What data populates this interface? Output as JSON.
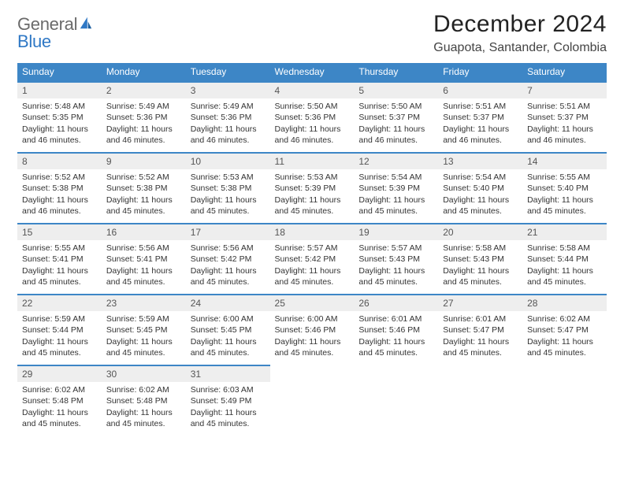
{
  "brand": {
    "text1": "General",
    "text2": "Blue"
  },
  "header": {
    "month_title": "December 2024",
    "location": "Guapota, Santander, Colombia"
  },
  "style": {
    "header_bg": "#3d86c6",
    "header_text": "#ffffff",
    "daynum_bg": "#eeeeee",
    "daynum_border": "#3d86c6",
    "body_text": "#333333",
    "page_bg": "#ffffff",
    "title_fontsize": 30,
    "location_fontsize": 16,
    "weekday_fontsize": 12,
    "cell_fontsize": 10.5
  },
  "calendar": {
    "columns": [
      "Sunday",
      "Monday",
      "Tuesday",
      "Wednesday",
      "Thursday",
      "Friday",
      "Saturday"
    ],
    "weeks": [
      [
        {
          "n": "1",
          "sr": "Sunrise: 5:48 AM",
          "ss": "Sunset: 5:35 PM",
          "d1": "Daylight: 11 hours",
          "d2": "and 46 minutes."
        },
        {
          "n": "2",
          "sr": "Sunrise: 5:49 AM",
          "ss": "Sunset: 5:36 PM",
          "d1": "Daylight: 11 hours",
          "d2": "and 46 minutes."
        },
        {
          "n": "3",
          "sr": "Sunrise: 5:49 AM",
          "ss": "Sunset: 5:36 PM",
          "d1": "Daylight: 11 hours",
          "d2": "and 46 minutes."
        },
        {
          "n": "4",
          "sr": "Sunrise: 5:50 AM",
          "ss": "Sunset: 5:36 PM",
          "d1": "Daylight: 11 hours",
          "d2": "and 46 minutes."
        },
        {
          "n": "5",
          "sr": "Sunrise: 5:50 AM",
          "ss": "Sunset: 5:37 PM",
          "d1": "Daylight: 11 hours",
          "d2": "and 46 minutes."
        },
        {
          "n": "6",
          "sr": "Sunrise: 5:51 AM",
          "ss": "Sunset: 5:37 PM",
          "d1": "Daylight: 11 hours",
          "d2": "and 46 minutes."
        },
        {
          "n": "7",
          "sr": "Sunrise: 5:51 AM",
          "ss": "Sunset: 5:37 PM",
          "d1": "Daylight: 11 hours",
          "d2": "and 46 minutes."
        }
      ],
      [
        {
          "n": "8",
          "sr": "Sunrise: 5:52 AM",
          "ss": "Sunset: 5:38 PM",
          "d1": "Daylight: 11 hours",
          "d2": "and 46 minutes."
        },
        {
          "n": "9",
          "sr": "Sunrise: 5:52 AM",
          "ss": "Sunset: 5:38 PM",
          "d1": "Daylight: 11 hours",
          "d2": "and 45 minutes."
        },
        {
          "n": "10",
          "sr": "Sunrise: 5:53 AM",
          "ss": "Sunset: 5:38 PM",
          "d1": "Daylight: 11 hours",
          "d2": "and 45 minutes."
        },
        {
          "n": "11",
          "sr": "Sunrise: 5:53 AM",
          "ss": "Sunset: 5:39 PM",
          "d1": "Daylight: 11 hours",
          "d2": "and 45 minutes."
        },
        {
          "n": "12",
          "sr": "Sunrise: 5:54 AM",
          "ss": "Sunset: 5:39 PM",
          "d1": "Daylight: 11 hours",
          "d2": "and 45 minutes."
        },
        {
          "n": "13",
          "sr": "Sunrise: 5:54 AM",
          "ss": "Sunset: 5:40 PM",
          "d1": "Daylight: 11 hours",
          "d2": "and 45 minutes."
        },
        {
          "n": "14",
          "sr": "Sunrise: 5:55 AM",
          "ss": "Sunset: 5:40 PM",
          "d1": "Daylight: 11 hours",
          "d2": "and 45 minutes."
        }
      ],
      [
        {
          "n": "15",
          "sr": "Sunrise: 5:55 AM",
          "ss": "Sunset: 5:41 PM",
          "d1": "Daylight: 11 hours",
          "d2": "and 45 minutes."
        },
        {
          "n": "16",
          "sr": "Sunrise: 5:56 AM",
          "ss": "Sunset: 5:41 PM",
          "d1": "Daylight: 11 hours",
          "d2": "and 45 minutes."
        },
        {
          "n": "17",
          "sr": "Sunrise: 5:56 AM",
          "ss": "Sunset: 5:42 PM",
          "d1": "Daylight: 11 hours",
          "d2": "and 45 minutes."
        },
        {
          "n": "18",
          "sr": "Sunrise: 5:57 AM",
          "ss": "Sunset: 5:42 PM",
          "d1": "Daylight: 11 hours",
          "d2": "and 45 minutes."
        },
        {
          "n": "19",
          "sr": "Sunrise: 5:57 AM",
          "ss": "Sunset: 5:43 PM",
          "d1": "Daylight: 11 hours",
          "d2": "and 45 minutes."
        },
        {
          "n": "20",
          "sr": "Sunrise: 5:58 AM",
          "ss": "Sunset: 5:43 PM",
          "d1": "Daylight: 11 hours",
          "d2": "and 45 minutes."
        },
        {
          "n": "21",
          "sr": "Sunrise: 5:58 AM",
          "ss": "Sunset: 5:44 PM",
          "d1": "Daylight: 11 hours",
          "d2": "and 45 minutes."
        }
      ],
      [
        {
          "n": "22",
          "sr": "Sunrise: 5:59 AM",
          "ss": "Sunset: 5:44 PM",
          "d1": "Daylight: 11 hours",
          "d2": "and 45 minutes."
        },
        {
          "n": "23",
          "sr": "Sunrise: 5:59 AM",
          "ss": "Sunset: 5:45 PM",
          "d1": "Daylight: 11 hours",
          "d2": "and 45 minutes."
        },
        {
          "n": "24",
          "sr": "Sunrise: 6:00 AM",
          "ss": "Sunset: 5:45 PM",
          "d1": "Daylight: 11 hours",
          "d2": "and 45 minutes."
        },
        {
          "n": "25",
          "sr": "Sunrise: 6:00 AM",
          "ss": "Sunset: 5:46 PM",
          "d1": "Daylight: 11 hours",
          "d2": "and 45 minutes."
        },
        {
          "n": "26",
          "sr": "Sunrise: 6:01 AM",
          "ss": "Sunset: 5:46 PM",
          "d1": "Daylight: 11 hours",
          "d2": "and 45 minutes."
        },
        {
          "n": "27",
          "sr": "Sunrise: 6:01 AM",
          "ss": "Sunset: 5:47 PM",
          "d1": "Daylight: 11 hours",
          "d2": "and 45 minutes."
        },
        {
          "n": "28",
          "sr": "Sunrise: 6:02 AM",
          "ss": "Sunset: 5:47 PM",
          "d1": "Daylight: 11 hours",
          "d2": "and 45 minutes."
        }
      ],
      [
        {
          "n": "29",
          "sr": "Sunrise: 6:02 AM",
          "ss": "Sunset: 5:48 PM",
          "d1": "Daylight: 11 hours",
          "d2": "and 45 minutes."
        },
        {
          "n": "30",
          "sr": "Sunrise: 6:02 AM",
          "ss": "Sunset: 5:48 PM",
          "d1": "Daylight: 11 hours",
          "d2": "and 45 minutes."
        },
        {
          "n": "31",
          "sr": "Sunrise: 6:03 AM",
          "ss": "Sunset: 5:49 PM",
          "d1": "Daylight: 11 hours",
          "d2": "and 45 minutes."
        },
        null,
        null,
        null,
        null
      ]
    ]
  }
}
